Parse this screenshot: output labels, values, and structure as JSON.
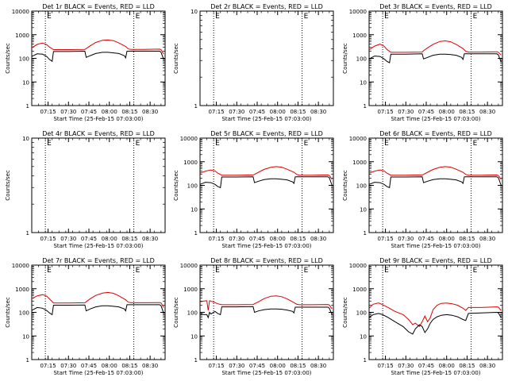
{
  "figure": {
    "colors": {
      "background": "#ffffff",
      "axes": "#000000",
      "events": "#000000",
      "lld": "#e00000"
    },
    "dotted_line_times": [
      "07:13",
      "08:18"
    ],
    "marker_glyph": "E"
  },
  "chart_data": [
    {
      "type": "line",
      "title": "Det 1r BLACK = Events, RED = LLD",
      "xlabel": "Start Time (25-Feb-15 07:03:00)",
      "ylabel": "Counts/sec",
      "yscale": "log",
      "ylim": [
        1,
        10000
      ],
      "y_tick_labels": [
        "1",
        "10",
        "100",
        "1000",
        "10000"
      ],
      "xlim": [
        "07:03",
        "08:41"
      ],
      "x_tick_labels": [
        "07:15",
        "07:30",
        "07:45",
        "08:00",
        "08:15",
        "08:30"
      ],
      "grid": false,
      "series": [
        {
          "name": "LLD",
          "color": "#e00000",
          "x": [
            "07:03",
            "07:07",
            "07:11",
            "07:14",
            "07:16",
            "07:19",
            "07:30",
            "07:42",
            "07:43",
            "07:46",
            "07:50",
            "07:55",
            "07:59",
            "08:03",
            "08:07",
            "08:12",
            "08:14",
            "08:16",
            "08:25",
            "08:37",
            "08:38",
            "08:40"
          ],
          "y": [
            280,
            390,
            450,
            380,
            300,
            235,
            235,
            240,
            260,
            340,
            470,
            580,
            600,
            560,
            450,
            320,
            250,
            240,
            240,
            245,
            230,
            150
          ]
        },
        {
          "name": "Events",
          "color": "#000000",
          "x": [
            "07:03",
            "07:07",
            "07:11",
            "07:14",
            "07:16",
            "07:18",
            "07:19",
            "07:30",
            "07:42",
            "07:43",
            "07:46",
            "07:50",
            "07:55",
            "07:59",
            "08:03",
            "08:07",
            "08:11",
            "08:12",
            "08:13",
            "08:25",
            "08:37",
            "08:38",
            "08:40"
          ],
          "y": [
            120,
            155,
            150,
            120,
            90,
            75,
            195,
            195,
            200,
            110,
            130,
            160,
            180,
            180,
            170,
            160,
            130,
            105,
            200,
            200,
            200,
            180,
            90
          ]
        }
      ]
    },
    {
      "type": "line",
      "title": "Det 2r BLACK = Events, RED = LLD",
      "xlabel": "Start Time (25-Feb-15 07:03:00)",
      "ylabel": "Counts/sec",
      "yscale": "log",
      "ylim": [
        1,
        10
      ],
      "y_tick_labels": [
        "1",
        "10"
      ],
      "xlim": [
        "07:03",
        "08:41"
      ],
      "x_tick_labels": [
        "07:15",
        "07:30",
        "07:45",
        "08:00",
        "08:15",
        "08:30"
      ],
      "grid": false,
      "series": []
    },
    {
      "type": "line",
      "title": "Det 3r BLACK = Events, RED = LLD",
      "xlabel": "Start Time (25-Feb-15 07:03:00)",
      "ylabel": "Counts/sec",
      "yscale": "log",
      "ylim": [
        1,
        10000
      ],
      "y_tick_labels": [
        "1",
        "10",
        "100",
        "1000",
        "10000"
      ],
      "xlim": [
        "07:03",
        "08:41"
      ],
      "x_tick_labels": [
        "07:15",
        "07:30",
        "07:45",
        "08:00",
        "08:15",
        "08:30"
      ],
      "grid": false,
      "series": [
        {
          "name": "LLD",
          "color": "#e00000",
          "x": [
            "07:03",
            "07:07",
            "07:11",
            "07:14",
            "07:16",
            "07:19",
            "07:30",
            "07:42",
            "07:43",
            "07:46",
            "07:50",
            "07:55",
            "07:59",
            "08:03",
            "08:07",
            "08:12",
            "08:14",
            "08:16",
            "08:25",
            "08:37",
            "08:38",
            "08:40"
          ],
          "y": [
            230,
            330,
            400,
            330,
            240,
            180,
            180,
            185,
            210,
            280,
            390,
            520,
            550,
            500,
            390,
            260,
            200,
            185,
            185,
            190,
            180,
            140
          ]
        },
        {
          "name": "Events",
          "color": "#000000",
          "x": [
            "07:03",
            "07:07",
            "07:11",
            "07:14",
            "07:16",
            "07:18",
            "07:19",
            "07:30",
            "07:42",
            "07:43",
            "07:46",
            "07:50",
            "07:55",
            "07:59",
            "08:03",
            "08:07",
            "08:11",
            "08:12",
            "08:13",
            "08:25",
            "08:37",
            "08:38",
            "08:40"
          ],
          "y": [
            95,
            125,
            120,
            95,
            75,
            65,
            150,
            150,
            155,
            95,
            110,
            135,
            150,
            150,
            145,
            135,
            110,
            90,
            155,
            155,
            155,
            140,
            70
          ]
        }
      ]
    },
    {
      "type": "line",
      "title": "Det 4r BLACK = Events, RED = LLD",
      "xlabel": "Start Time (25-Feb-15 07:03:00)",
      "ylabel": "Counts/sec",
      "yscale": "log",
      "ylim": [
        1,
        10
      ],
      "y_tick_labels": [
        "1",
        "10"
      ],
      "xlim": [
        "07:03",
        "08:41"
      ],
      "x_tick_labels": [
        "07:15",
        "07:30",
        "07:45",
        "08:00",
        "08:15",
        "08:30"
      ],
      "grid": false,
      "series": []
    },
    {
      "type": "line",
      "title": "Det 5r BLACK = Events, RED = LLD",
      "xlabel": "Start Time (25-Feb-15 07:03:00)",
      "ylabel": "Counts/sec",
      "yscale": "log",
      "ylim": [
        1,
        10000
      ],
      "y_tick_labels": [
        "1",
        "10",
        "100",
        "1000",
        "10000"
      ],
      "xlim": [
        "07:03",
        "08:41"
      ],
      "x_tick_labels": [
        "07:15",
        "07:30",
        "07:45",
        "08:00",
        "08:15",
        "08:30"
      ],
      "grid": false,
      "series": [
        {
          "name": "LLD",
          "color": "#e00000",
          "x": [
            "07:03",
            "07:07",
            "07:11",
            "07:14",
            "07:16",
            "07:19",
            "07:30",
            "07:42",
            "07:43",
            "07:46",
            "07:50",
            "07:55",
            "07:59",
            "08:03",
            "08:07",
            "08:12",
            "08:14",
            "08:16",
            "08:25",
            "08:37",
            "08:38",
            "08:40"
          ],
          "y": [
            330,
            400,
            450,
            410,
            330,
            270,
            270,
            275,
            290,
            360,
            470,
            580,
            620,
            590,
            480,
            360,
            290,
            270,
            270,
            275,
            260,
            180
          ]
        },
        {
          "name": "Events",
          "color": "#000000",
          "x": [
            "07:03",
            "07:07",
            "07:11",
            "07:14",
            "07:16",
            "07:18",
            "07:19",
            "07:30",
            "07:42",
            "07:43",
            "07:46",
            "07:50",
            "07:55",
            "07:59",
            "08:03",
            "08:07",
            "08:11",
            "08:12",
            "08:13",
            "08:25",
            "08:37",
            "08:38",
            "08:40"
          ],
          "y": [
            110,
            135,
            130,
            110,
            90,
            80,
            225,
            225,
            230,
            130,
            150,
            175,
            190,
            190,
            180,
            170,
            140,
            120,
            230,
            230,
            230,
            210,
            100
          ]
        }
      ]
    },
    {
      "type": "line",
      "title": "Det 6r BLACK = Events, RED = LLD",
      "xlabel": "Start Time (25-Feb-15 07:03:00)",
      "ylabel": "Counts/sec",
      "yscale": "log",
      "ylim": [
        1,
        10000
      ],
      "y_tick_labels": [
        "1",
        "10",
        "100",
        "1000",
        "10000"
      ],
      "xlim": [
        "07:03",
        "08:41"
      ],
      "x_tick_labels": [
        "07:15",
        "07:30",
        "07:45",
        "08:00",
        "08:15",
        "08:30"
      ],
      "grid": false,
      "series": [
        {
          "name": "LLD",
          "color": "#e00000",
          "x": [
            "07:03",
            "07:07",
            "07:11",
            "07:14",
            "07:16",
            "07:19",
            "07:30",
            "07:42",
            "07:43",
            "07:46",
            "07:50",
            "07:55",
            "07:59",
            "08:03",
            "08:07",
            "08:12",
            "08:14",
            "08:16",
            "08:25",
            "08:37",
            "08:38",
            "08:40"
          ],
          "y": [
            330,
            400,
            450,
            410,
            330,
            270,
            270,
            275,
            290,
            360,
            470,
            580,
            620,
            590,
            480,
            360,
            290,
            270,
            270,
            275,
            260,
            180
          ]
        },
        {
          "name": "Events",
          "color": "#000000",
          "x": [
            "07:03",
            "07:07",
            "07:11",
            "07:14",
            "07:16",
            "07:18",
            "07:19",
            "07:30",
            "07:42",
            "07:43",
            "07:46",
            "07:50",
            "07:55",
            "07:59",
            "08:03",
            "08:07",
            "08:11",
            "08:12",
            "08:13",
            "08:25",
            "08:37",
            "08:38",
            "08:40"
          ],
          "y": [
            110,
            135,
            130,
            110,
            90,
            80,
            225,
            225,
            230,
            130,
            150,
            175,
            190,
            190,
            180,
            170,
            140,
            120,
            230,
            230,
            230,
            210,
            100
          ]
        }
      ]
    },
    {
      "type": "line",
      "title": "Det 7r BLACK = Events, RED = LLD",
      "xlabel": "Start Time (25-Feb-15 07:03:00)",
      "ylabel": "Counts/sec",
      "yscale": "log",
      "ylim": [
        1,
        10000
      ],
      "y_tick_labels": [
        "1",
        "10",
        "100",
        "1000",
        "10000"
      ],
      "xlim": [
        "07:03",
        "08:41"
      ],
      "x_tick_labels": [
        "07:15",
        "07:30",
        "07:45",
        "08:00",
        "08:15",
        "08:30"
      ],
      "grid": false,
      "series": [
        {
          "name": "LLD",
          "color": "#e00000",
          "x": [
            "07:03",
            "07:07",
            "07:11",
            "07:14",
            "07:16",
            "07:19",
            "07:30",
            "07:42",
            "07:43",
            "07:46",
            "07:50",
            "07:55",
            "07:59",
            "08:03",
            "08:07",
            "08:12",
            "08:14",
            "08:16",
            "08:25",
            "08:37",
            "08:38",
            "08:40"
          ],
          "y": [
            380,
            500,
            560,
            480,
            370,
            250,
            250,
            255,
            280,
            380,
            520,
            650,
            700,
            640,
            500,
            340,
            270,
            255,
            255,
            260,
            250,
            160
          ]
        },
        {
          "name": "Events",
          "color": "#000000",
          "x": [
            "07:03",
            "07:07",
            "07:11",
            "07:14",
            "07:16",
            "07:18",
            "07:19",
            "07:30",
            "07:42",
            "07:43",
            "07:46",
            "07:50",
            "07:55",
            "07:59",
            "08:03",
            "08:07",
            "08:11",
            "08:12",
            "08:13",
            "08:25",
            "08:37",
            "08:38",
            "08:40"
          ],
          "y": [
            120,
            160,
            150,
            120,
            95,
            80,
            200,
            200,
            205,
            115,
            140,
            170,
            190,
            190,
            180,
            170,
            140,
            115,
            210,
            210,
            210,
            190,
            90
          ]
        }
      ]
    },
    {
      "type": "line",
      "title": "Det 8r BLACK = Events, RED = LLD",
      "xlabel": "Start Time (25-Feb-15 07:03:00)",
      "ylabel": "Counts/sec",
      "yscale": "log",
      "ylim": [
        1,
        10000
      ],
      "y_tick_labels": [
        "1",
        "10",
        "100",
        "1000",
        "10000"
      ],
      "xlim": [
        "07:03",
        "08:41"
      ],
      "x_tick_labels": [
        "07:15",
        "07:30",
        "07:45",
        "08:00",
        "08:15",
        "08:30"
      ],
      "grid": false,
      "series": [
        {
          "name": "LLD",
          "color": "#e00000",
          "x": [
            "07:03",
            "07:06",
            "07:08",
            "07:09",
            "07:10",
            "07:11",
            "07:14",
            "07:16",
            "07:19",
            "07:30",
            "07:42",
            "07:43",
            "07:46",
            "07:50",
            "07:55",
            "07:59",
            "08:03",
            "08:07",
            "08:12",
            "08:14",
            "08:16",
            "08:25",
            "08:37",
            "08:38",
            "08:40"
          ],
          "y": [
            280,
            300,
            310,
            120,
            310,
            300,
            260,
            230,
            210,
            210,
            215,
            230,
            280,
            380,
            480,
            500,
            460,
            370,
            260,
            220,
            210,
            210,
            215,
            205,
            140
          ]
        },
        {
          "name": "Events",
          "color": "#000000",
          "x": [
            "07:03",
            "07:06",
            "07:08",
            "07:09",
            "07:10",
            "07:11",
            "07:14",
            "07:16",
            "07:18",
            "07:19",
            "07:30",
            "07:42",
            "07:43",
            "07:46",
            "07:50",
            "07:55",
            "07:59",
            "08:03",
            "08:07",
            "08:11",
            "08:12",
            "08:13",
            "08:25",
            "08:37",
            "08:38",
            "08:40"
          ],
          "y": [
            90,
            80,
            80,
            60,
            100,
            85,
            110,
            90,
            80,
            170,
            170,
            175,
            100,
            115,
            130,
            140,
            140,
            135,
            125,
            110,
            95,
            165,
            165,
            165,
            150,
            80
          ]
        }
      ]
    },
    {
      "type": "line",
      "title": "Det 9r BLACK = Events, RED = LLD",
      "xlabel": "Start Time (25-Feb-15 07:03:00)",
      "ylabel": "Counts/sec",
      "yscale": "log",
      "ylim": [
        1,
        10000
      ],
      "y_tick_labels": [
        "1",
        "10",
        "100",
        "1000",
        "10000"
      ],
      "xlim": [
        "07:03",
        "08:41"
      ],
      "x_tick_labels": [
        "07:15",
        "07:30",
        "07:45",
        "08:00",
        "08:15",
        "08:30"
      ],
      "grid": false,
      "series": [
        {
          "name": "LLD",
          "color": "#e00000",
          "x": [
            "07:03",
            "07:06",
            "07:10",
            "07:13",
            "07:17",
            "07:22",
            "07:28",
            "07:32",
            "07:35",
            "07:37",
            "07:40",
            "07:42",
            "07:44",
            "07:46",
            "07:48",
            "07:50",
            "07:53",
            "07:56",
            "08:00",
            "08:04",
            "08:08",
            "08:12",
            "08:14",
            "08:16",
            "08:25",
            "08:37",
            "08:38",
            "08:40"
          ],
          "y": [
            150,
            220,
            250,
            210,
            160,
            110,
            80,
            50,
            30,
            35,
            25,
            40,
            70,
            40,
            60,
            130,
            200,
            240,
            250,
            230,
            200,
            150,
            120,
            160,
            160,
            170,
            165,
            120
          ]
        },
        {
          "name": "Events",
          "color": "#000000",
          "x": [
            "07:03",
            "07:06",
            "07:10",
            "07:13",
            "07:17",
            "07:22",
            "07:28",
            "07:32",
            "07:35",
            "07:37",
            "07:40",
            "07:42",
            "07:44",
            "07:46",
            "07:48",
            "07:50",
            "07:53",
            "07:56",
            "08:00",
            "08:04",
            "08:08",
            "08:12",
            "08:14",
            "08:16",
            "08:25",
            "08:37",
            "08:38",
            "08:40"
          ],
          "y": [
            60,
            80,
            90,
            80,
            60,
            40,
            25,
            15,
            12,
            20,
            30,
            25,
            14,
            20,
            35,
            50,
            65,
            75,
            80,
            75,
            65,
            50,
            45,
            90,
            95,
            100,
            95,
            60
          ]
        }
      ]
    }
  ]
}
